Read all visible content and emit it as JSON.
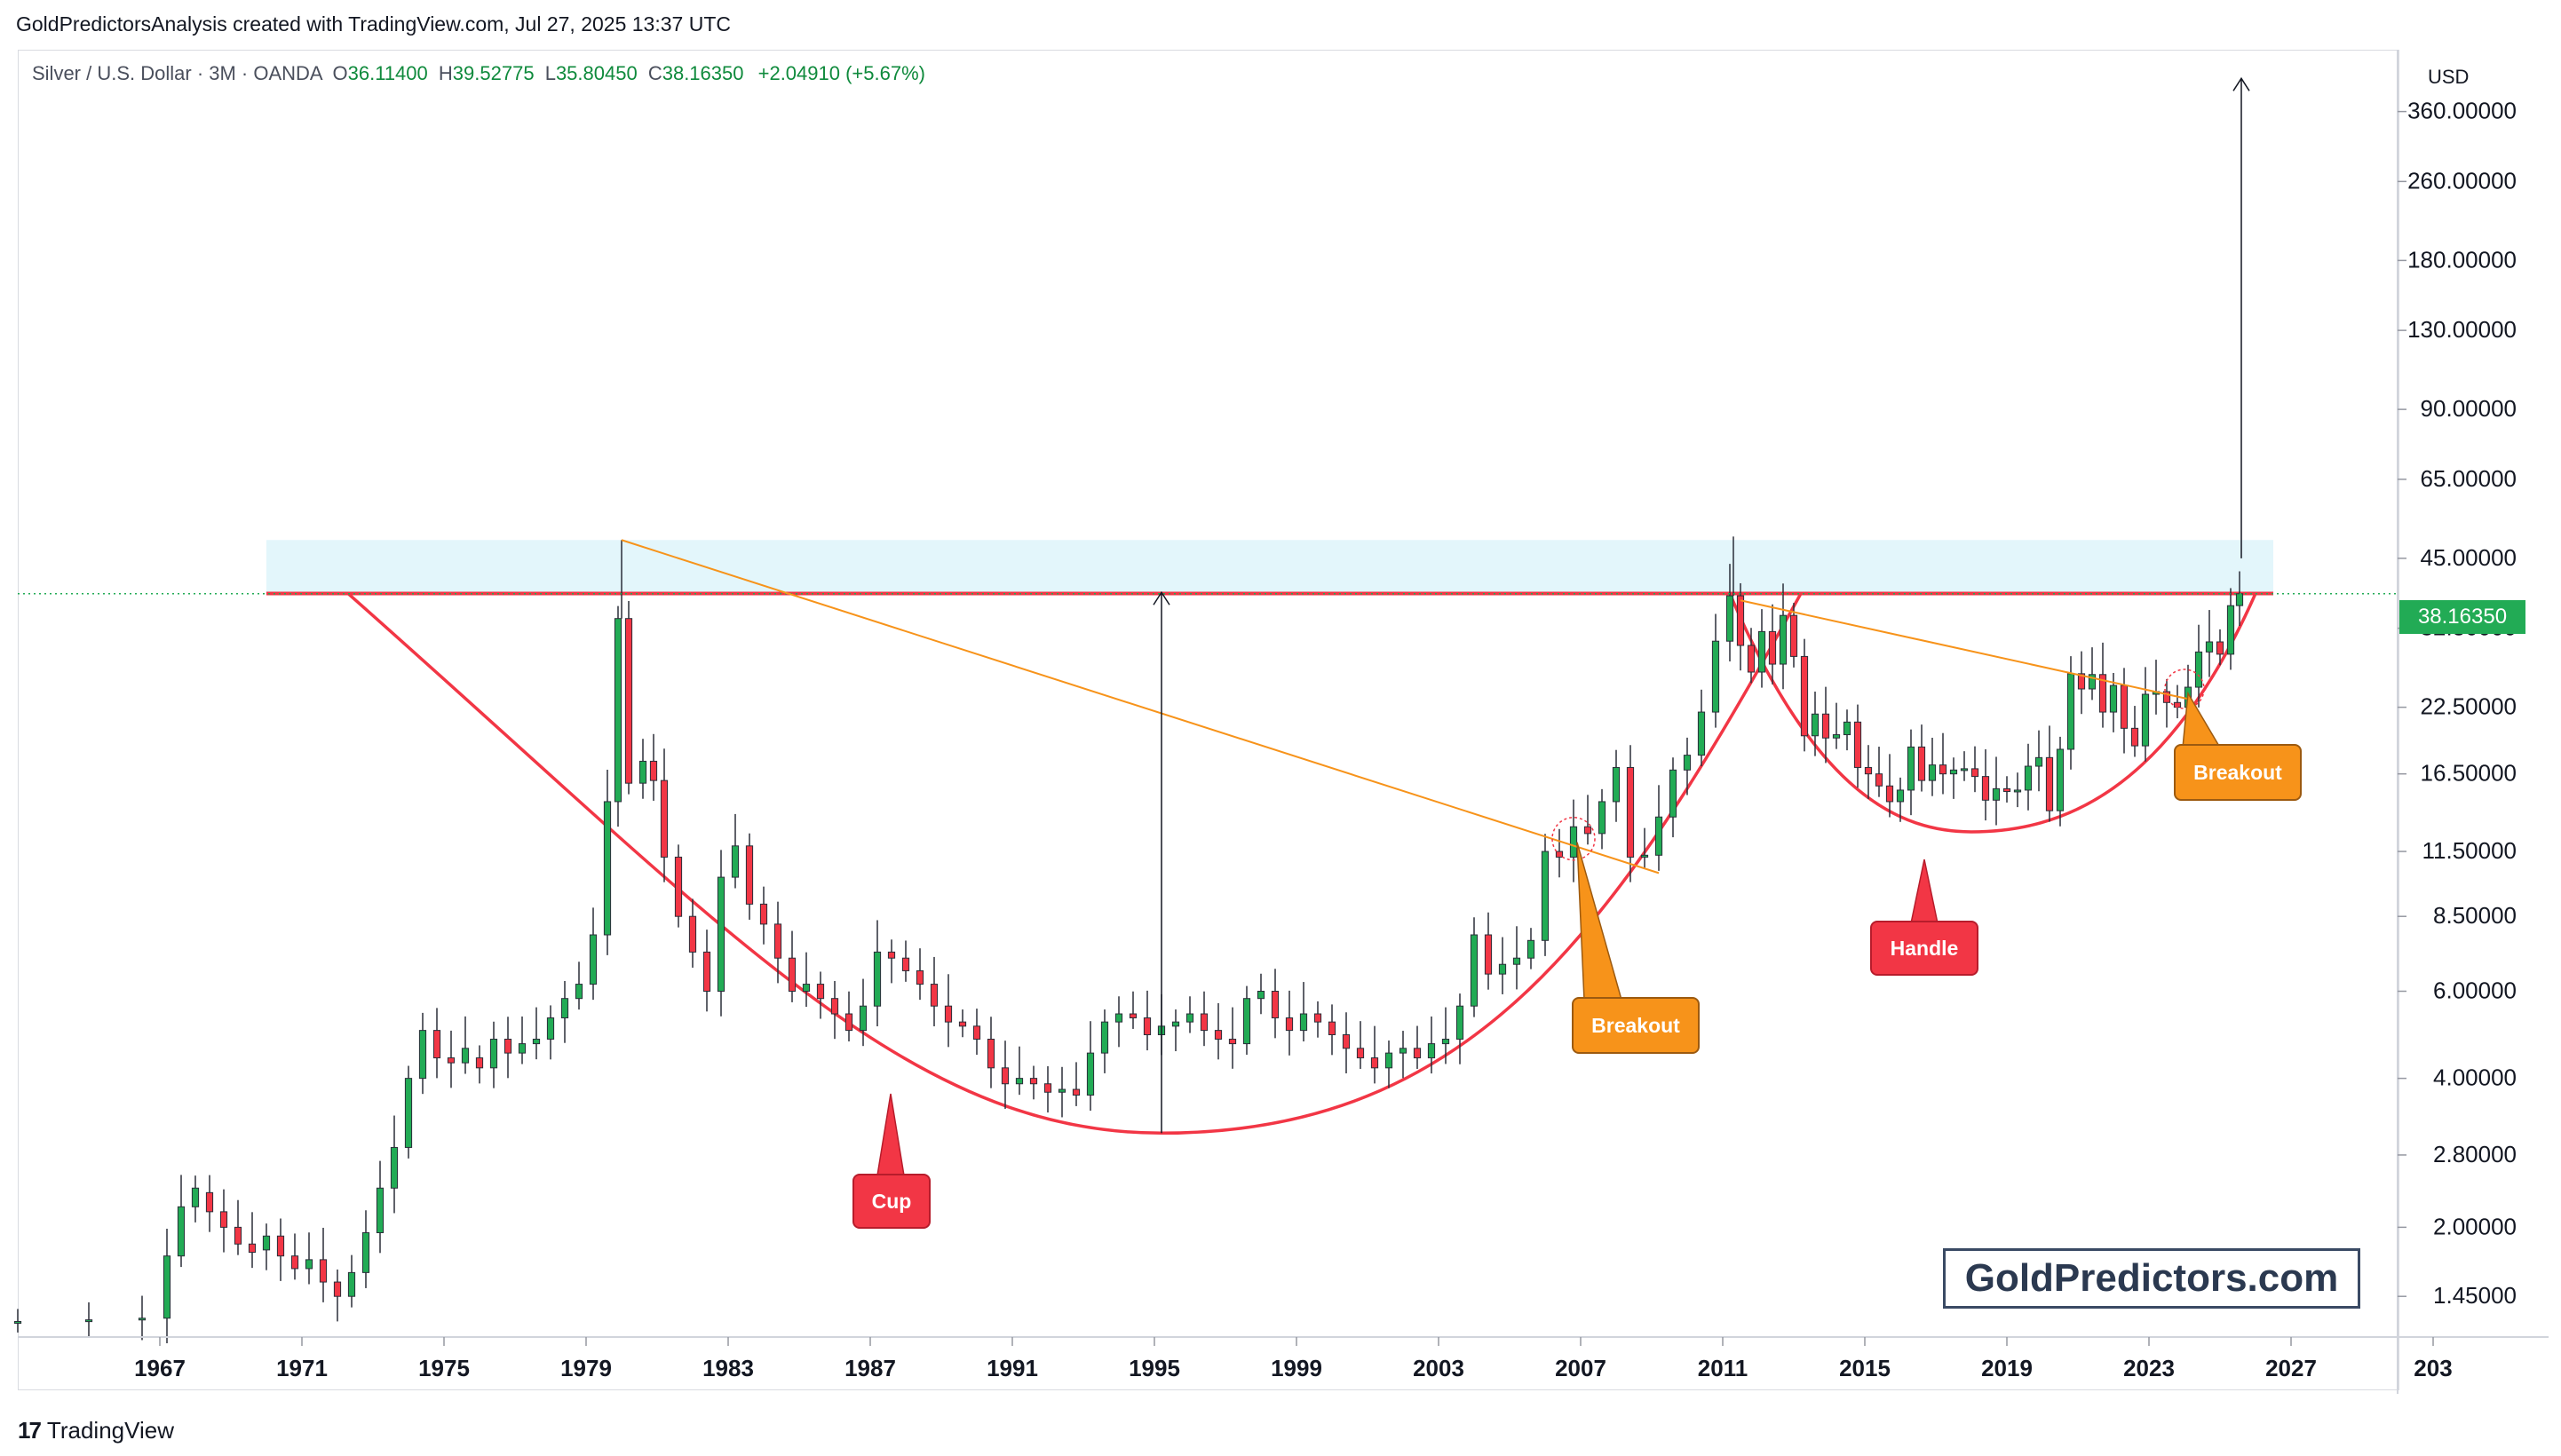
{
  "header": {
    "credit": "GoldPredictorsAnalysis created with TradingView.com, Jul 27, 2025 13:37 UTC"
  },
  "symbol": {
    "name": "Silver / U.S. Dollar · 3M · OANDA",
    "open_label": "O",
    "open": "36.11400",
    "high_label": "H",
    "high": "39.52775",
    "low_label": "L",
    "low": "35.80450",
    "close_label": "C",
    "close": "38.16350",
    "change": "+2.04910 (+5.67%)"
  },
  "currency": "USD",
  "current_price": "38.16350",
  "watermark": "GoldPredictors.com",
  "footer": {
    "brand": "TradingView",
    "mark": "17"
  },
  "annotations": {
    "cup": "Cup",
    "handle": "Handle",
    "breakout_1": "Breakout",
    "breakout_2": "Breakout"
  },
  "colors": {
    "up": "#22ab55",
    "down": "#f23645",
    "pattern": "#f23645",
    "trendline": "#f7931a",
    "resistance_zone": "#e3f6fb",
    "price_tag": "#22ab55"
  },
  "chart_data": {
    "type": "candlestick",
    "scale": "log",
    "interval": "3M",
    "ylim": [
      1.2,
      480
    ],
    "xlim": [
      1963,
      2030
    ],
    "x_ticks": [
      "1967",
      "1971",
      "1975",
      "1979",
      "1983",
      "1987",
      "1991",
      "1995",
      "1999",
      "2003",
      "2007",
      "2011",
      "2015",
      "2019",
      "2023",
      "2027",
      "203"
    ],
    "y_ticks": [
      "360.00000",
      "260.00000",
      "180.00000",
      "130.00000",
      "90.00000",
      "65.00000",
      "45.00000",
      "32.50000",
      "22.50000",
      "16.50000",
      "11.50000",
      "8.50000",
      "6.00000",
      "4.00000",
      "2.80000",
      "2.00000",
      "1.45000"
    ],
    "series": [
      {
        "name": "Silver / U.S. Dollar",
        "points": [
          [
            1963.0,
            1.29,
            1.29
          ],
          [
            1965.0,
            1.29,
            1.3
          ],
          [
            1966.5,
            1.3,
            1.31
          ],
          [
            1967.2,
            1.31,
            1.75
          ],
          [
            1967.6,
            1.75,
            2.2
          ],
          [
            1968.0,
            2.2,
            2.4
          ],
          [
            1968.4,
            2.35,
            2.15
          ],
          [
            1968.8,
            2.15,
            2.0
          ],
          [
            1969.2,
            2.0,
            1.85
          ],
          [
            1969.6,
            1.85,
            1.78
          ],
          [
            1970.0,
            1.8,
            1.92
          ],
          [
            1970.4,
            1.92,
            1.75
          ],
          [
            1970.8,
            1.75,
            1.65
          ],
          [
            1971.2,
            1.65,
            1.72
          ],
          [
            1971.6,
            1.72,
            1.55
          ],
          [
            1972.0,
            1.55,
            1.45
          ],
          [
            1972.4,
            1.45,
            1.62
          ],
          [
            1972.8,
            1.62,
            1.95
          ],
          [
            1973.2,
            1.95,
            2.4
          ],
          [
            1973.6,
            2.4,
            2.9
          ],
          [
            1974.0,
            2.9,
            4.0
          ],
          [
            1974.4,
            4.0,
            5.0
          ],
          [
            1974.8,
            5.0,
            4.4
          ],
          [
            1975.2,
            4.4,
            4.3
          ],
          [
            1975.6,
            4.3,
            4.6
          ],
          [
            1976.0,
            4.4,
            4.2
          ],
          [
            1976.4,
            4.2,
            4.8
          ],
          [
            1976.8,
            4.8,
            4.5
          ],
          [
            1977.2,
            4.5,
            4.7
          ],
          [
            1977.6,
            4.7,
            4.8
          ],
          [
            1978.0,
            4.8,
            5.3
          ],
          [
            1978.4,
            5.3,
            5.8
          ],
          [
            1978.8,
            5.8,
            6.2
          ],
          [
            1979.2,
            6.2,
            7.8
          ],
          [
            1979.6,
            7.8,
            14.5
          ],
          [
            1979.9,
            14.5,
            34.0
          ],
          [
            1980.2,
            34.0,
            15.8
          ],
          [
            1980.6,
            15.8,
            17.5
          ],
          [
            1980.9,
            17.5,
            16.0
          ],
          [
            1981.2,
            16.0,
            11.2
          ],
          [
            1981.6,
            11.2,
            8.5
          ],
          [
            1982.0,
            8.5,
            7.2
          ],
          [
            1982.4,
            7.2,
            6.0
          ],
          [
            1982.8,
            6.0,
            10.2
          ],
          [
            1983.2,
            10.2,
            11.8
          ],
          [
            1983.6,
            11.8,
            9.0
          ],
          [
            1984.0,
            9.0,
            8.2
          ],
          [
            1984.4,
            8.2,
            7.0
          ],
          [
            1984.8,
            7.0,
            6.0
          ],
          [
            1985.2,
            6.0,
            6.2
          ],
          [
            1985.6,
            6.2,
            5.8
          ],
          [
            1986.0,
            5.8,
            5.4
          ],
          [
            1986.4,
            5.4,
            5.0
          ],
          [
            1986.8,
            5.0,
            5.6
          ],
          [
            1987.2,
            5.6,
            7.2
          ],
          [
            1987.6,
            7.2,
            7.0
          ],
          [
            1988.0,
            7.0,
            6.6
          ],
          [
            1988.4,
            6.6,
            6.2
          ],
          [
            1988.8,
            6.2,
            5.6
          ],
          [
            1989.2,
            5.6,
            5.2
          ],
          [
            1989.6,
            5.2,
            5.1
          ],
          [
            1990.0,
            5.1,
            4.8
          ],
          [
            1990.4,
            4.8,
            4.2
          ],
          [
            1990.8,
            4.2,
            3.9
          ],
          [
            1991.2,
            3.9,
            4.0
          ],
          [
            1991.6,
            4.0,
            3.9
          ],
          [
            1992.0,
            3.9,
            3.75
          ],
          [
            1992.4,
            3.75,
            3.8
          ],
          [
            1992.8,
            3.8,
            3.7
          ],
          [
            1993.2,
            3.7,
            4.5
          ],
          [
            1993.6,
            4.5,
            5.2
          ],
          [
            1994.0,
            5.2,
            5.4
          ],
          [
            1994.4,
            5.4,
            5.3
          ],
          [
            1994.8,
            5.3,
            4.9
          ],
          [
            1995.2,
            4.9,
            5.1
          ],
          [
            1995.6,
            5.1,
            5.2
          ],
          [
            1996.0,
            5.2,
            5.4
          ],
          [
            1996.4,
            5.4,
            5.0
          ],
          [
            1996.8,
            5.0,
            4.8
          ],
          [
            1997.2,
            4.8,
            4.7
          ],
          [
            1997.6,
            4.7,
            5.8
          ],
          [
            1998.0,
            5.8,
            6.0
          ],
          [
            1998.4,
            6.0,
            5.3
          ],
          [
            1998.8,
            5.3,
            5.0
          ],
          [
            1999.2,
            5.0,
            5.4
          ],
          [
            1999.6,
            5.4,
            5.2
          ],
          [
            2000.0,
            5.2,
            4.9
          ],
          [
            2000.4,
            4.9,
            4.6
          ],
          [
            2000.8,
            4.6,
            4.4
          ],
          [
            2001.2,
            4.4,
            4.2
          ],
          [
            2001.6,
            4.2,
            4.5
          ],
          [
            2002.0,
            4.5,
            4.6
          ],
          [
            2002.4,
            4.6,
            4.4
          ],
          [
            2002.8,
            4.4,
            4.7
          ],
          [
            2003.2,
            4.7,
            4.8
          ],
          [
            2003.6,
            4.8,
            5.6
          ],
          [
            2004.0,
            5.6,
            7.8
          ],
          [
            2004.4,
            7.8,
            6.5
          ],
          [
            2004.8,
            6.5,
            6.8
          ],
          [
            2005.2,
            6.8,
            7.0
          ],
          [
            2005.6,
            7.0,
            7.6
          ],
          [
            2006.0,
            7.6,
            11.5
          ],
          [
            2006.4,
            11.5,
            11.2
          ],
          [
            2006.8,
            11.2,
            12.9
          ],
          [
            2007.2,
            12.9,
            12.5
          ],
          [
            2007.6,
            12.5,
            14.5
          ],
          [
            2008.0,
            14.5,
            17.0
          ],
          [
            2008.4,
            17.0,
            11.2
          ],
          [
            2008.8,
            11.2,
            11.3
          ],
          [
            2009.2,
            11.3,
            13.5
          ],
          [
            2009.6,
            13.5,
            16.8
          ],
          [
            2010.0,
            16.8,
            18.0
          ],
          [
            2010.4,
            18.0,
            22.0
          ],
          [
            2010.8,
            22.0,
            30.6
          ],
          [
            2011.2,
            30.6,
            37.8
          ],
          [
            2011.5,
            37.8,
            30.0
          ],
          [
            2011.8,
            30.0,
            26.5
          ],
          [
            2012.1,
            26.5,
            32.0
          ],
          [
            2012.4,
            32.0,
            27.5
          ],
          [
            2012.7,
            27.5,
            34.5
          ],
          [
            2013.0,
            34.5,
            28.5
          ],
          [
            2013.3,
            28.5,
            19.7
          ],
          [
            2013.6,
            19.7,
            21.8
          ],
          [
            2013.9,
            21.8,
            19.5
          ],
          [
            2014.2,
            19.5,
            19.8
          ],
          [
            2014.5,
            19.8,
            21.0
          ],
          [
            2014.8,
            21.0,
            17.0
          ],
          [
            2015.1,
            17.0,
            16.5
          ],
          [
            2015.4,
            16.5,
            15.6
          ],
          [
            2015.7,
            15.6,
            14.5
          ],
          [
            2016.0,
            14.5,
            15.3
          ],
          [
            2016.3,
            15.3,
            18.7
          ],
          [
            2016.6,
            18.7,
            16.0
          ],
          [
            2016.9,
            16.0,
            17.2
          ],
          [
            2017.2,
            17.2,
            16.5
          ],
          [
            2017.5,
            16.5,
            16.8
          ],
          [
            2017.8,
            16.8,
            16.9
          ],
          [
            2018.1,
            16.9,
            16.3
          ],
          [
            2018.4,
            16.3,
            14.6
          ],
          [
            2018.7,
            14.6,
            15.4
          ],
          [
            2019.0,
            15.4,
            15.2
          ],
          [
            2019.3,
            15.2,
            15.3
          ],
          [
            2019.6,
            15.3,
            17.1
          ],
          [
            2019.9,
            17.1,
            17.8
          ],
          [
            2020.2,
            17.8,
            13.9
          ],
          [
            2020.5,
            13.9,
            18.5
          ],
          [
            2020.8,
            18.5,
            26.3
          ],
          [
            2021.1,
            26.3,
            24.5
          ],
          [
            2021.4,
            24.5,
            26.2
          ],
          [
            2021.7,
            26.2,
            22.0
          ],
          [
            2022.0,
            22.0,
            24.9
          ],
          [
            2022.3,
            24.9,
            20.4
          ],
          [
            2022.6,
            20.4,
            18.8
          ],
          [
            2022.9,
            18.8,
            23.9
          ],
          [
            2023.2,
            23.9,
            24.2
          ],
          [
            2023.5,
            24.2,
            23.0
          ],
          [
            2023.8,
            23.0,
            22.5
          ],
          [
            2024.1,
            22.5,
            24.7
          ],
          [
            2024.4,
            24.7,
            29.1
          ],
          [
            2024.7,
            29.1,
            30.5
          ],
          [
            2025.0,
            30.5,
            28.8
          ],
          [
            2025.3,
            28.8,
            36.1
          ],
          [
            2025.55,
            36.11,
            38.16
          ]
        ]
      }
    ]
  }
}
